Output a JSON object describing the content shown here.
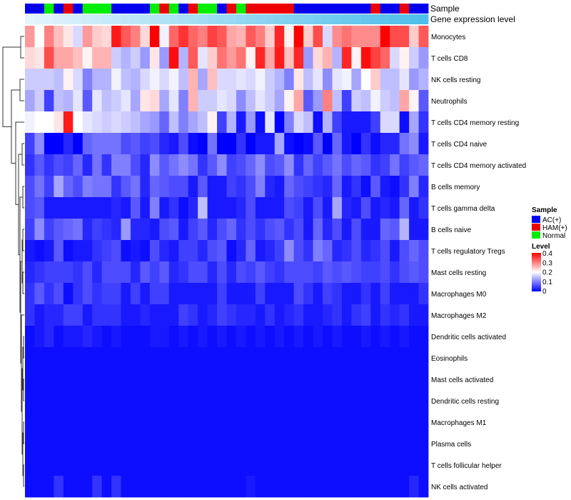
{
  "chart_data": {
    "type": "heatmap",
    "annotation_tracks": [
      "Sample",
      "Gene expression level"
    ],
    "legend": {
      "sample_title": "Sample",
      "sample_entries": [
        {
          "label": "AC(+)",
          "color": "#0000ee"
        },
        {
          "label": "HAM(+)",
          "color": "#ee0000"
        },
        {
          "label": "Normal",
          "color": "#00ee00"
        }
      ],
      "level_title": "Level",
      "level_ticks": [
        "0.4",
        "0.3",
        "0.2",
        "0.1",
        "0"
      ],
      "level_range": [
        0,
        0.4
      ]
    },
    "colors": {
      "low": "#0000ff",
      "mid": "#ffffff",
      "high": "#ff0000",
      "midpoint": 0.2
    },
    "samples": [
      "A",
      "A",
      "N",
      "A",
      "H",
      "A",
      "N",
      "N",
      "N",
      "A",
      "A",
      "A",
      "A",
      "N",
      "H",
      "N",
      "A",
      "H",
      "N",
      "N",
      "A",
      "H",
      "N",
      "H",
      "H",
      "H",
      "H",
      "H",
      "A",
      "A",
      "A",
      "A",
      "A",
      "A",
      "A",
      "A",
      "H",
      "A",
      "A",
      "H",
      "A",
      "A"
    ],
    "expression_levels": [
      0.02,
      0.05,
      0.07,
      0.1,
      0.12,
      0.14,
      0.17,
      0.19,
      0.22,
      0.24,
      0.26,
      0.29,
      0.31,
      0.34,
      0.36,
      0.38,
      0.41,
      0.43,
      0.45,
      0.48,
      0.5,
      0.52,
      0.55,
      0.57,
      0.6,
      0.62,
      0.64,
      0.67,
      0.69,
      0.71,
      0.74,
      0.76,
      0.79,
      0.81,
      0.83,
      0.86,
      0.88,
      0.9,
      0.93,
      0.95,
      0.97,
      1.0
    ],
    "rows": [
      {
        "label": "Monocytes",
        "values": [
          0.28,
          0.2,
          0.3,
          0.25,
          0.22,
          0.17,
          0.28,
          0.24,
          0.23,
          0.38,
          0.33,
          0.3,
          0.23,
          0.4,
          0.19,
          0.32,
          0.36,
          0.32,
          0.3,
          0.35,
          0.33,
          0.27,
          0.26,
          0.33,
          0.3,
          0.24,
          0.37,
          0.21,
          0.4,
          0.24,
          0.34,
          0.17,
          0.29,
          0.31,
          0.29,
          0.29,
          0.29,
          0.4,
          0.34,
          0.34,
          0.24,
          0.33
        ]
      },
      {
        "label": "T cells CD8",
        "values": [
          0.23,
          0.22,
          0.34,
          0.27,
          0.27,
          0.25,
          0.21,
          0.26,
          0.26,
          0.16,
          0.14,
          0.16,
          0.12,
          0.22,
          0.12,
          0.39,
          0.14,
          0.33,
          0.18,
          0.24,
          0.31,
          0.28,
          0.31,
          0.21,
          0.37,
          0.27,
          0.38,
          0.25,
          0.37,
          0.12,
          0.23,
          0.26,
          0.14,
          0.37,
          0.21,
          0.39,
          0.35,
          0.32,
          0.17,
          0.21,
          0.16,
          0.12
        ]
      },
      {
        "label": "NK cells resting",
        "values": [
          0.16,
          0.16,
          0.16,
          0.15,
          0.21,
          0.17,
          0.1,
          0.14,
          0.14,
          0.19,
          0.15,
          0.14,
          0.17,
          0.19,
          0.17,
          0.19,
          0.15,
          0.26,
          0.13,
          0.25,
          0.17,
          0.17,
          0.18,
          0.17,
          0.19,
          0.16,
          0.14,
          0.1,
          0.22,
          0.15,
          0.18,
          0.11,
          0.18,
          0.19,
          0.13,
          0.2,
          0.24,
          0.15,
          0.15,
          0.18,
          0.12,
          0.14
        ]
      },
      {
        "label": "Neutrophils",
        "values": [
          0.13,
          0.16,
          0.05,
          0.15,
          0.14,
          0.18,
          0.07,
          0.18,
          0.15,
          0.16,
          0.18,
          0.13,
          0.22,
          0.23,
          0.13,
          0.18,
          0.1,
          0.26,
          0.16,
          0.16,
          0.18,
          0.17,
          0.11,
          0.15,
          0.18,
          0.16,
          0.13,
          0.21,
          0.27,
          0.07,
          0.12,
          0.3,
          0.15,
          0.05,
          0.16,
          0.15,
          0.19,
          0.16,
          0.15,
          0.27,
          0.21,
          0.07
        ]
      },
      {
        "label": "T cells CD4 memory resting",
        "values": [
          0.19,
          0.2,
          0.2,
          0.22,
          0.38,
          0.2,
          0.18,
          0.17,
          0.16,
          0.17,
          0.16,
          0.15,
          0.13,
          0.12,
          0.08,
          0.15,
          0.1,
          0.13,
          0.15,
          0.21,
          0.05,
          0.14,
          0.02,
          0.12,
          0.01,
          0.18,
          0.0,
          0.1,
          0.17,
          0.15,
          0.01,
          0.14,
          0.05,
          0.02,
          0.02,
          0.02,
          0.05,
          0.17,
          0.17,
          0.01,
          0.13,
          0.04
        ]
      },
      {
        "label": "T cells CD4 naive",
        "values": [
          0.05,
          0.11,
          0.0,
          0.0,
          0.03,
          0.0,
          0.08,
          0.09,
          0.09,
          0.09,
          0.06,
          0.07,
          0.05,
          0.06,
          0.03,
          0.02,
          0.06,
          0.01,
          0.0,
          0.09,
          0.0,
          0.0,
          0.04,
          0.0,
          0.02,
          0.02,
          0.13,
          0.01,
          0.0,
          0.01,
          0.07,
          0.0,
          0.08,
          0.02,
          0.0,
          0.04,
          0.01,
          0.03,
          0.03,
          0.09,
          0.11,
          0.02
        ]
      },
      {
        "label": "T cells CD4 memory activated",
        "values": [
          0.04,
          0.07,
          0.04,
          0.06,
          0.05,
          0.08,
          0.03,
          0.09,
          0.04,
          0.1,
          0.1,
          0.06,
          0.03,
          0.11,
          0.07,
          0.09,
          0.11,
          0.09,
          0.04,
          0.07,
          0.11,
          0.05,
          0.06,
          0.08,
          0.11,
          0.06,
          0.07,
          0.11,
          0.04,
          0.08,
          0.05,
          0.07,
          0.09,
          0.06,
          0.08,
          0.07,
          0.04,
          0.05,
          0.09,
          0.05,
          0.07,
          0.08
        ]
      },
      {
        "label": "B cells memory",
        "values": [
          0.06,
          0.09,
          0.05,
          0.13,
          0.08,
          0.06,
          0.1,
          0.09,
          0.09,
          0.04,
          0.07,
          0.09,
          0.03,
          0.08,
          0.07,
          0.06,
          0.06,
          0.02,
          0.07,
          0.02,
          0.02,
          0.05,
          0.04,
          0.06,
          0.1,
          0.03,
          0.02,
          0.08,
          0.06,
          0.05,
          0.04,
          0.03,
          0.08,
          0.02,
          0.04,
          0.01,
          0.07,
          0.02,
          0.01,
          0.04,
          0.1,
          0.03
        ]
      },
      {
        "label": "T cells gamma delta",
        "values": [
          0.06,
          0.07,
          0.02,
          0.02,
          0.02,
          0.02,
          0.02,
          0.02,
          0.02,
          0.03,
          0.02,
          0.07,
          0.02,
          0.1,
          0.02,
          0.04,
          0.01,
          0.03,
          0.15,
          0.02,
          0.02,
          0.02,
          0.03,
          0.06,
          0.02,
          0.02,
          0.02,
          0.06,
          0.05,
          0.02,
          0.06,
          0.02,
          0.13,
          0.03,
          0.02,
          0.06,
          0.02,
          0.03,
          0.02,
          0.08,
          0.02,
          0.04
        ]
      },
      {
        "label": "B cells naive",
        "values": [
          0.05,
          0.11,
          0.05,
          0.07,
          0.08,
          0.09,
          0.03,
          0.05,
          0.04,
          0.03,
          0.12,
          0.03,
          0.03,
          0.02,
          0.06,
          0.07,
          0.02,
          0.05,
          0.07,
          0.03,
          0.06,
          0.08,
          0.04,
          0.06,
          0.04,
          0.06,
          0.07,
          0.04,
          0.06,
          0.02,
          0.08,
          0.03,
          0.06,
          0.02,
          0.06,
          0.02,
          0.02,
          0.08,
          0.07,
          0.14,
          0.02,
          0.02
        ]
      },
      {
        "label": "T cells regulatory  Tregs",
        "values": [
          0.02,
          0.01,
          0.02,
          0.07,
          0.01,
          0.02,
          0.02,
          0.04,
          0.05,
          0.06,
          0.01,
          0.02,
          0.01,
          0.06,
          0.03,
          0.02,
          0.05,
          0.05,
          0.03,
          0.06,
          0.07,
          0.01,
          0.03,
          0.08,
          0.02,
          0.03,
          0.05,
          0.11,
          0.06,
          0.04,
          0.1,
          0.08,
          0.03,
          0.04,
          0.06,
          0.03,
          0.04,
          0.06,
          0.02,
          0.06,
          0.08,
          0.06
        ]
      },
      {
        "label": "Mast cells resting",
        "values": [
          0.03,
          0.04,
          0.05,
          0.05,
          0.05,
          0.04,
          0.06,
          0.03,
          0.06,
          0.06,
          0.06,
          0.03,
          0.07,
          0.05,
          0.07,
          0.03,
          0.04,
          0.06,
          0.06,
          0.03,
          0.06,
          0.03,
          0.06,
          0.05,
          0.07,
          0.05,
          0.04,
          0.06,
          0.06,
          0.06,
          0.05,
          0.07,
          0.06,
          0.07,
          0.06,
          0.05,
          0.05,
          0.06,
          0.04,
          0.06,
          0.07,
          0.06
        ]
      },
      {
        "label": "Macrophages M0",
        "values": [
          0.04,
          0.07,
          0.04,
          0.06,
          0.01,
          0.04,
          0.06,
          0.04,
          0.05,
          0.05,
          0.02,
          0.05,
          0.02,
          0.05,
          0.05,
          0.02,
          0.02,
          0.02,
          0.02,
          0.02,
          0.05,
          0.02,
          0.02,
          0.02,
          0.05,
          0.02,
          0.02,
          0.02,
          0.06,
          0.04,
          0.02,
          0.05,
          0.04,
          0.02,
          0.02,
          0.04,
          0.02,
          0.05,
          0.02,
          0.02,
          0.02,
          0.04
        ]
      },
      {
        "label": "Macrophages M2",
        "values": [
          0.04,
          0.02,
          0.03,
          0.03,
          0.05,
          0.05,
          0.02,
          0.04,
          0.04,
          0.04,
          0.02,
          0.02,
          0.03,
          0.02,
          0.02,
          0.02,
          0.05,
          0.04,
          0.02,
          0.03,
          0.05,
          0.04,
          0.03,
          0.03,
          0.02,
          0.04,
          0.02,
          0.03,
          0.04,
          0.02,
          0.02,
          0.03,
          0.04,
          0.02,
          0.04,
          0.05,
          0.02,
          0.04,
          0.03,
          0.04,
          0.02,
          0.02
        ]
      },
      {
        "label": "Dendritic cells activated",
        "values": [
          0.01,
          0.02,
          0.03,
          0.01,
          0.02,
          0.02,
          0.03,
          0.02,
          0.01,
          0.02,
          0.01,
          0.01,
          0.01,
          0.02,
          0.02,
          0.01,
          0.02,
          0.01,
          0.02,
          0.01,
          0.02,
          0.01,
          0.02,
          0.01,
          0.02,
          0.01,
          0.02,
          0.01,
          0.02,
          0.01,
          0.02,
          0.01,
          0.02,
          0.01,
          0.01,
          0.02,
          0.01,
          0.02,
          0.01,
          0.02,
          0.01,
          0.01
        ]
      },
      {
        "label": "Eosinophils",
        "values": [
          0.01,
          0.01,
          0.01,
          0.01,
          0.01,
          0.01,
          0.01,
          0.01,
          0.01,
          0.01,
          0.01,
          0.01,
          0.01,
          0.01,
          0.01,
          0.01,
          0.01,
          0.01,
          0.01,
          0.01,
          0.01,
          0.01,
          0.01,
          0.01,
          0.01,
          0.01,
          0.01,
          0.01,
          0.01,
          0.01,
          0.01,
          0.01,
          0.01,
          0.01,
          0.01,
          0.01,
          0.01,
          0.01,
          0.01,
          0.01,
          0.01,
          0.01
        ]
      },
      {
        "label": "Mast cells activated",
        "values": [
          0.01,
          0.01,
          0.01,
          0.01,
          0.01,
          0.01,
          0.01,
          0.01,
          0.01,
          0.01,
          0.01,
          0.01,
          0.01,
          0.01,
          0.01,
          0.01,
          0.01,
          0.01,
          0.01,
          0.01,
          0.01,
          0.01,
          0.01,
          0.01,
          0.01,
          0.01,
          0.01,
          0.01,
          0.01,
          0.01,
          0.01,
          0.01,
          0.01,
          0.01,
          0.01,
          0.01,
          0.01,
          0.01,
          0.01,
          0.01,
          0.01,
          0.01
        ]
      },
      {
        "label": "Dendritic cells resting",
        "values": [
          0.01,
          0.01,
          0.01,
          0.01,
          0.01,
          0.01,
          0.01,
          0.01,
          0.01,
          0.01,
          0.01,
          0.01,
          0.01,
          0.01,
          0.01,
          0.01,
          0.01,
          0.01,
          0.01,
          0.01,
          0.01,
          0.01,
          0.01,
          0.01,
          0.01,
          0.01,
          0.01,
          0.01,
          0.01,
          0.01,
          0.01,
          0.01,
          0.01,
          0.01,
          0.01,
          0.01,
          0.01,
          0.01,
          0.01,
          0.01,
          0.01,
          0.01
        ]
      },
      {
        "label": "Macrophages M1",
        "values": [
          0.01,
          0.01,
          0.01,
          0.01,
          0.01,
          0.01,
          0.01,
          0.01,
          0.01,
          0.01,
          0.01,
          0.01,
          0.01,
          0.01,
          0.01,
          0.01,
          0.01,
          0.01,
          0.01,
          0.01,
          0.01,
          0.01,
          0.01,
          0.01,
          0.01,
          0.01,
          0.01,
          0.01,
          0.01,
          0.01,
          0.01,
          0.01,
          0.01,
          0.01,
          0.01,
          0.01,
          0.01,
          0.01,
          0.01,
          0.01,
          0.01,
          0.01
        ]
      },
      {
        "label": "Plasma cells",
        "values": [
          0.01,
          0.01,
          0.01,
          0.01,
          0.01,
          0.01,
          0.01,
          0.01,
          0.01,
          0.01,
          0.01,
          0.01,
          0.01,
          0.01,
          0.01,
          0.01,
          0.01,
          0.01,
          0.01,
          0.01,
          0.01,
          0.01,
          0.01,
          0.01,
          0.01,
          0.01,
          0.01,
          0.01,
          0.01,
          0.01,
          0.01,
          0.01,
          0.01,
          0.01,
          0.01,
          0.01,
          0.01,
          0.01,
          0.01,
          0.01,
          0.01,
          0.01
        ]
      },
      {
        "label": "T cells follicular helper",
        "values": [
          0.01,
          0.01,
          0.01,
          0.01,
          0.01,
          0.01,
          0.01,
          0.01,
          0.01,
          0.01,
          0.01,
          0.01,
          0.01,
          0.01,
          0.01,
          0.01,
          0.01,
          0.01,
          0.01,
          0.01,
          0.01,
          0.01,
          0.01,
          0.01,
          0.01,
          0.01,
          0.01,
          0.01,
          0.01,
          0.01,
          0.01,
          0.01,
          0.01,
          0.01,
          0.01,
          0.01,
          0.01,
          0.01,
          0.01,
          0.01,
          0.01,
          0.01
        ]
      },
      {
        "label": "NK cells activated",
        "values": [
          0.01,
          0.01,
          0.01,
          0.04,
          0.01,
          0.01,
          0.01,
          0.04,
          0.01,
          0.04,
          0.01,
          0.01,
          0.01,
          0.01,
          0.01,
          0.01,
          0.01,
          0.01,
          0.01,
          0.01,
          0.01,
          0.01,
          0.01,
          0.02,
          0.01,
          0.01,
          0.01,
          0.01,
          0.01,
          0.01,
          0.01,
          0.01,
          0.01,
          0.01,
          0.01,
          0.01,
          0.01,
          0.01,
          0.01,
          0.01,
          0.03,
          0.01
        ]
      }
    ]
  }
}
